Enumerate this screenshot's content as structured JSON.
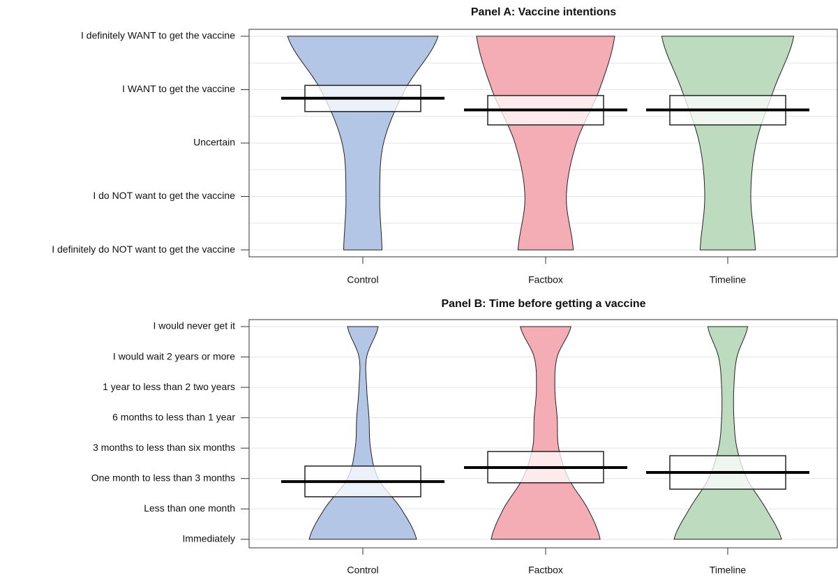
{
  "chart_data": [
    {
      "type": "pirate",
      "title": "Panel A: Vaccine intentions",
      "categories": [
        "Control",
        "Factbox",
        "Timeline"
      ],
      "colors": [
        "#b3c6e5",
        "#f4adb4",
        "#bddcbf"
      ],
      "means": [
        3.84,
        3.62,
        3.62
      ],
      "ci_low": [
        3.59,
        3.34,
        3.34
      ],
      "ci_high": [
        4.08,
        3.89,
        3.89
      ],
      "densities": [
        [
          0.25,
          0.22,
          0.27,
          0.55,
          0.98
        ],
        [
          0.36,
          0.27,
          0.4,
          0.7,
          0.9
        ],
        [
          0.36,
          0.3,
          0.37,
          0.6,
          0.86
        ]
      ],
      "ylim": [
        0.87,
        5.13
      ],
      "yticks": [
        {
          "value": 1,
          "label": "I definitely do NOT want to get the vaccine"
        },
        {
          "value": 2,
          "label": "I do NOT want to get the vaccine"
        },
        {
          "value": 3,
          "label": "Uncertain"
        },
        {
          "value": 4,
          "label": "I WANT to get the vaccine"
        },
        {
          "value": 5,
          "label": "I definitely WANT to get the vaccine"
        }
      ],
      "minor_yticks": [
        1.5,
        2.5,
        3.5,
        4.5
      ],
      "grid": true
    },
    {
      "type": "pirate",
      "title": "Panel B: Time before getting a vaccine",
      "categories": [
        "Control",
        "Factbox",
        "Timeline"
      ],
      "colors": [
        "#b3c6e5",
        "#f4adb4",
        "#bddcbf"
      ],
      "means": [
        2.9,
        3.36,
        3.2
      ],
      "ci_low": [
        2.4,
        2.86,
        2.65
      ],
      "ci_high": [
        3.41,
        3.89,
        3.75
      ],
      "densities": [
        [
          0.7,
          0.5,
          0.2,
          0.1,
          0.08,
          0.05,
          0.05,
          0.2
        ],
        [
          0.71,
          0.55,
          0.3,
          0.17,
          0.15,
          0.12,
          0.15,
          0.33
        ],
        [
          0.7,
          0.5,
          0.25,
          0.12,
          0.08,
          0.08,
          0.12,
          0.26
        ]
      ],
      "ylim": [
        0.72,
        8.23
      ],
      "yticks": [
        {
          "value": 1,
          "label": "Immediately"
        },
        {
          "value": 2,
          "label": "Less than one month"
        },
        {
          "value": 3,
          "label": "One month to less than 3 months"
        },
        {
          "value": 4,
          "label": "3 months to less than six months"
        },
        {
          "value": 5,
          "label": "6 months to less than 1 year"
        },
        {
          "value": 6,
          "label": "1 year to less than 2 two years"
        },
        {
          "value": 7,
          "label": "I would wait 2 years or more"
        },
        {
          "value": 8,
          "label": "I would never get it"
        }
      ],
      "grid": true
    }
  ]
}
